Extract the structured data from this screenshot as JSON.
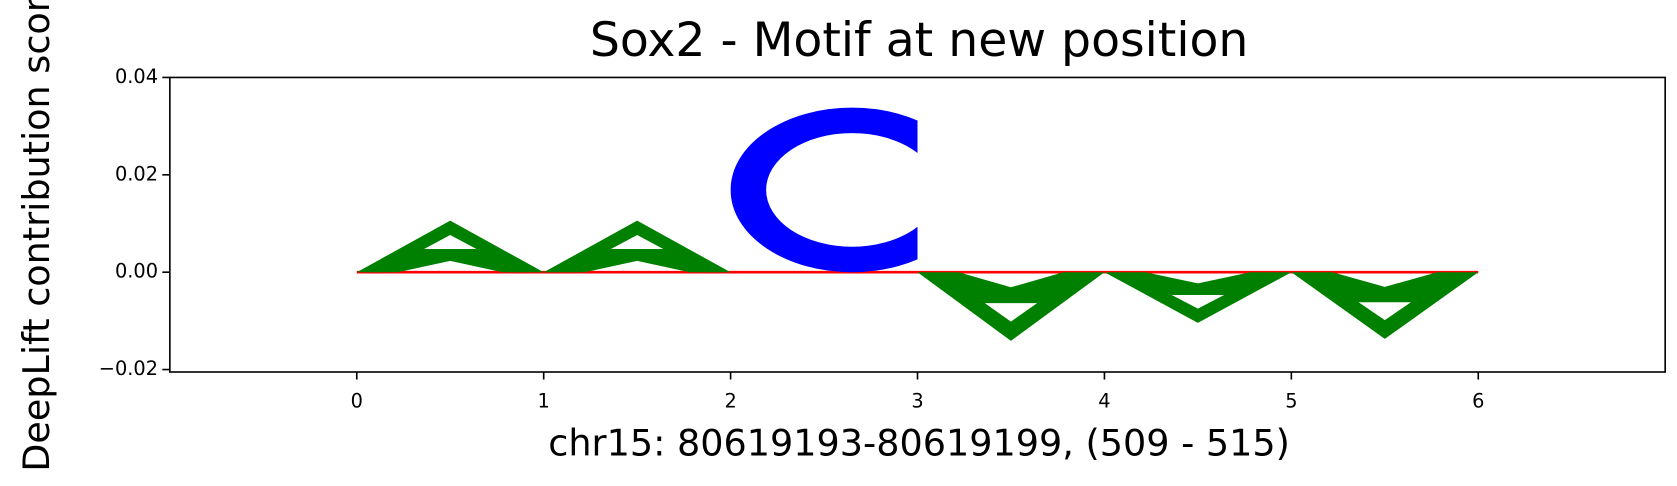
{
  "chart_data": {
    "type": "logo",
    "title": "Sox2 - Motif at new position",
    "xlabel": "chr15: 80619193-80619199, (509 - 515)",
    "ylabel": "DeepLift contribution score",
    "letters": [
      "A",
      "A",
      "C",
      "A",
      "A",
      "A"
    ],
    "x": [
      0,
      1,
      2,
      3,
      4,
      5
    ],
    "values": [
      0.0106,
      0.0106,
      0.0338,
      -0.0141,
      -0.0104,
      -0.0137
    ],
    "letter_colors": {
      "A": "#008000",
      "C": "#0000ff"
    },
    "baseline_color": "#ff0000",
    "xlim": [
      -1,
      7
    ],
    "xticks": [
      0,
      1,
      2,
      3,
      4,
      5,
      6
    ],
    "ylim": [
      -0.0205,
      0.04
    ],
    "yticks": [
      {
        "value": -0.02,
        "label": "−0.02"
      },
      {
        "value": 0,
        "label": "0.00"
      },
      {
        "value": 0.02,
        "label": "0.02"
      },
      {
        "value": 0.04,
        "label": "0.04"
      }
    ]
  }
}
